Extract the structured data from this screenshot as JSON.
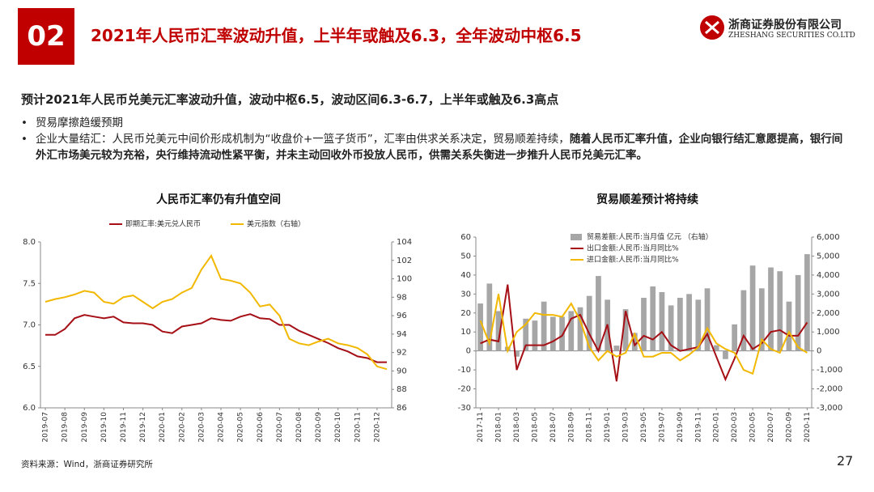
{
  "header": {
    "number": "02",
    "title": "2021年人民币汇率波动升值，上半年或触及6.3，全年波动中枢6.5",
    "logo_name": "浙商证券股份有限公司",
    "logo_en": "ZHESHANG SECURITIES CO.LTD"
  },
  "lead": "预计2021年人民币兑美元汇率波动升值，波动中枢6.5，波动区间6.3-6.7，上半年或触及6.3高点",
  "bullets": [
    {
      "text": "贸易摩擦趋缓预期"
    },
    {
      "text": "企业大量结汇：人民币兑美元中间价形成机制为“收盘价+一篮子货币”，汇率由供求关系决定，贸易顺差持续，",
      "bold": "随着人民币汇率升值，企业向银行结汇意愿提高，银行间外汇市场美元较为充裕，央行维持流动性紧平衡，并未主动回收外币投放人民币，供需关系失衡进一步推升人民币兑美元汇率。"
    }
  ],
  "chart_data": [
    {
      "type": "line",
      "title": "人民币汇率仍有升值空间",
      "categories": [
        "2019-07",
        null,
        "2019-08",
        null,
        "2019-09",
        null,
        "2019-10",
        null,
        "2019-11",
        null,
        "2019-12",
        null,
        "2020-01",
        null,
        "2020-02",
        null,
        "2020-03",
        null,
        "2020-04",
        null,
        "2020-05",
        null,
        "2020-06",
        null,
        "2020-07",
        null,
        "2020-08",
        null,
        "2020-09",
        null,
        "2020-10",
        null,
        "2020-11",
        null,
        "2020-12",
        null
      ],
      "series": [
        {
          "name": "即期汇率:美元兑人民币",
          "color": "#a50f15",
          "type": "line",
          "values": [
            6.88,
            6.88,
            6.95,
            7.08,
            7.12,
            7.1,
            7.08,
            7.1,
            7.03,
            7.02,
            7.02,
            7.0,
            6.92,
            6.9,
            6.98,
            7.0,
            7.02,
            7.08,
            7.06,
            7.05,
            7.1,
            7.13,
            7.08,
            7.07,
            7.0,
            7.0,
            6.93,
            6.88,
            6.83,
            6.78,
            6.72,
            6.68,
            6.62,
            6.6,
            6.55,
            6.55
          ]
        },
        {
          "name": "美元指数（右轴）",
          "color": "#f2b800",
          "type": "line",
          "axis": "y2",
          "values": [
            97.5,
            97.8,
            98.0,
            98.3,
            98.7,
            98.5,
            97.5,
            97.3,
            98.0,
            98.2,
            97.5,
            96.8,
            97.5,
            97.8,
            98.5,
            99.0,
            101,
            102.5,
            100.0,
            99.8,
            99.5,
            98.5,
            97.0,
            97.2,
            96.0,
            93.5,
            93.0,
            92.8,
            93.2,
            93.5,
            93.0,
            92.8,
            92.5,
            91.8,
            90.5,
            90.2
          ]
        }
      ],
      "ylim": [
        6,
        8
      ],
      "yticks": [
        {
          "value": 6,
          "label": "6.0"
        },
        {
          "value": 6.5,
          "label": "6.5"
        },
        {
          "value": 7,
          "label": "7.0"
        },
        {
          "value": 7.5,
          "label": "7.5"
        },
        {
          "value": 8,
          "label": "8.0"
        }
      ],
      "y2lim": [
        86,
        104
      ],
      "y2ticks": [
        86,
        88,
        90,
        92,
        94,
        96,
        98,
        100,
        102,
        104
      ]
    },
    {
      "type": "combo",
      "title": "贸易顺差预计将持续",
      "categories": [
        "2017-11",
        null,
        "2018-01",
        null,
        "2018-03",
        null,
        "2018-05",
        null,
        "2018-07",
        null,
        "2018-09",
        null,
        "2018-11",
        null,
        "2019-01",
        null,
        "2019-03",
        null,
        "2019-05",
        null,
        "2019-07",
        null,
        "2019-09",
        null,
        "2019-11",
        null,
        "2020-01",
        null,
        "2020-03",
        null,
        "2020-05",
        null,
        "2020-07",
        null,
        "2020-09",
        null,
        "2020-11"
      ],
      "series": [
        {
          "name": "贸易差额:人民币:当月值 亿元 （右轴）",
          "color": "#a6a6a6",
          "type": "bar",
          "axis": "y2",
          "values": [
            2500,
            3550,
            2100,
            220,
            -300,
            1700,
            1600,
            2600,
            1800,
            1800,
            2100,
            2300,
            2900,
            3950,
            2700,
            280,
            2200,
            950,
            2800,
            3400,
            3100,
            2400,
            2800,
            3000,
            2700,
            3300,
            300,
            -430,
            1400,
            3200,
            4500,
            3300,
            4400,
            4200,
            2600,
            4000,
            5100
          ]
        },
        {
          "name": "出口金额:人民币:当月同比%",
          "color": "#a50f15",
          "type": "line",
          "values": [
            4,
            6,
            5,
            35,
            -10,
            3,
            3,
            3,
            5,
            8,
            17,
            19,
            9,
            0,
            14,
            -16,
            21,
            3,
            8,
            6,
            10,
            3,
            0,
            1,
            2,
            9,
            -3,
            -15,
            -4,
            8,
            1,
            4,
            10,
            11,
            8,
            8,
            15
          ]
        },
        {
          "name": "进口金额:人民币:当月同比%",
          "color": "#f2b800",
          "type": "line",
          "values": [
            16,
            4,
            30,
            0,
            10,
            14,
            20,
            19,
            19,
            18,
            25,
            16,
            2,
            -5,
            0,
            -3,
            -1,
            9,
            -3,
            -3,
            -1,
            -1,
            -5,
            -2,
            2,
            12,
            4,
            1,
            -1,
            -10,
            -12,
            6,
            1,
            -1,
            10,
            2,
            -1
          ]
        }
      ],
      "ylim": [
        -30,
        60
      ],
      "yticks": [
        -30,
        -20,
        -10,
        0,
        10,
        20,
        30,
        40,
        50,
        60
      ],
      "y2lim": [
        -3000,
        6000
      ],
      "y2ticks": [
        {
          "value": -3000,
          "label": "-3,000"
        },
        {
          "value": -2000,
          "label": "-2,000"
        },
        {
          "value": -1000,
          "label": "-1,000"
        },
        0,
        {
          "value": 1000,
          "label": "1,000"
        },
        {
          "value": 2000,
          "label": "2,000"
        },
        {
          "value": 3000,
          "label": "3,000"
        },
        {
          "value": 4000,
          "label": "4,000"
        },
        {
          "value": 5000,
          "label": "5,000"
        },
        {
          "value": 6000,
          "label": "6,000"
        }
      ]
    }
  ],
  "source": "资料来源：Wind，浙商证券研究所",
  "page": "27"
}
